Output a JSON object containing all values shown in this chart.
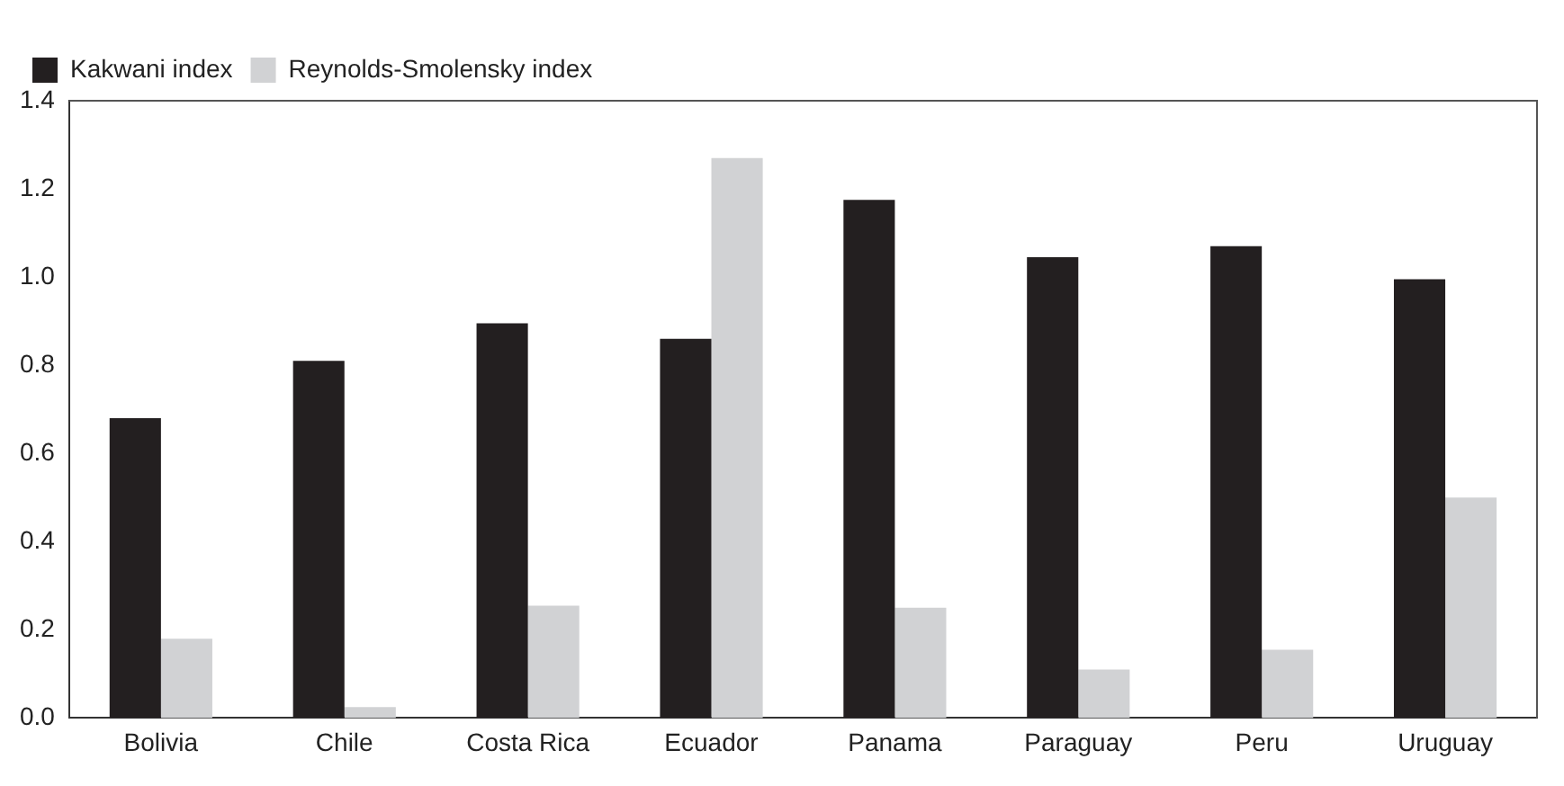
{
  "chart_data": {
    "type": "bar",
    "categories": [
      "Bolivia",
      "Chile",
      "Costa Rica",
      "Ecuador",
      "Panama",
      "Paraguay",
      "Peru",
      "Uruguay"
    ],
    "series": [
      {
        "name": "Kakwani index",
        "color": "#231f20",
        "values": [
          0.68,
          0.81,
          0.895,
          0.86,
          1.175,
          1.045,
          1.07,
          0.995
        ]
      },
      {
        "name": "Reynolds-Smolensky index",
        "color": "#d1d2d4",
        "values": [
          0.18,
          0.025,
          0.255,
          1.27,
          0.25,
          0.11,
          0.155,
          0.5
        ]
      }
    ],
    "ylim": [
      0,
      1.4
    ],
    "yticks": [
      {
        "value": 0,
        "label": "0.0"
      },
      0.2,
      0.4,
      0.6,
      0.8,
      {
        "value": 1,
        "label": "1.0"
      },
      1.2,
      1.4
    ],
    "grid": false,
    "legend": "top left"
  }
}
